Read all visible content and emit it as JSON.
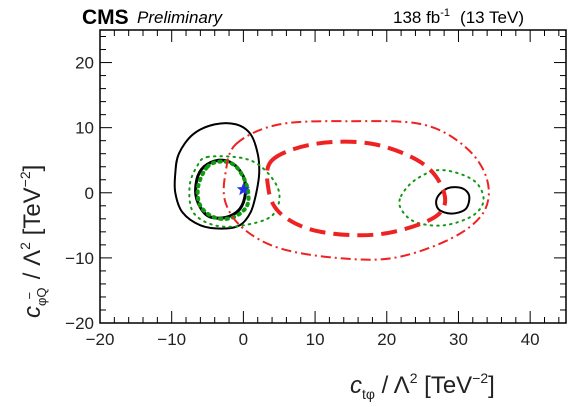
{
  "header": {
    "experiment": "CMS",
    "status": "Preliminary",
    "lumi": "138 fb",
    "lumi_exp": "-1",
    "energy": "(13 TeV)"
  },
  "chart_data": {
    "type": "contour",
    "xlabel": {
      "main": "c",
      "sub": "tφ",
      "rest": " / Λ",
      "sup": "2",
      "unit": " [TeV",
      "unit_sup": "−2",
      "unit_end": "]"
    },
    "ylabel": {
      "main": "c",
      "sub": "φQ",
      "sub_sup": "−",
      "rest": " / Λ",
      "sup": "2",
      "unit": " [TeV",
      "unit_sup": "−2",
      "unit_end": "]"
    },
    "xlim": [
      -20,
      45
    ],
    "ylim": [
      -20,
      25
    ],
    "xticks": [
      -20,
      -10,
      0,
      10,
      20,
      30,
      40
    ],
    "yticks": [
      -20,
      -10,
      0,
      10,
      20
    ],
    "xtick_labels": [
      "−20",
      "−10",
      "0",
      "10",
      "20",
      "30",
      "40"
    ],
    "ytick_labels": [
      "−20",
      "−10",
      "0",
      "10",
      "20"
    ],
    "best_fit": {
      "x": 0,
      "y": 0.5,
      "color": "#2233dd"
    },
    "contours": [
      {
        "id": "black-outer",
        "color": "#000000",
        "style": "solid",
        "width": 2,
        "points": [
          [
            -7,
            9
          ],
          [
            -4,
            10.5
          ],
          [
            -1,
            10.5
          ],
          [
            1,
            9
          ],
          [
            2,
            6
          ],
          [
            2.2,
            3
          ],
          [
            1.8,
            0
          ],
          [
            1,
            -3
          ],
          [
            -0.5,
            -5
          ],
          [
            -3,
            -5.5
          ],
          [
            -6,
            -5
          ],
          [
            -8.5,
            -3
          ],
          [
            -9.5,
            0
          ],
          [
            -9.5,
            3
          ],
          [
            -9,
            6
          ]
        ]
      },
      {
        "id": "black-inner",
        "color": "#000000",
        "style": "solid",
        "width": 3,
        "points": [
          [
            -5.5,
            4
          ],
          [
            -3.5,
            5
          ],
          [
            -1.5,
            4.5
          ],
          [
            0,
            2.5
          ],
          [
            0.3,
            0
          ],
          [
            -0.5,
            -2.5
          ],
          [
            -2.5,
            -3.8
          ],
          [
            -5,
            -3.5
          ],
          [
            -6.5,
            -1
          ],
          [
            -6.5,
            2
          ]
        ]
      },
      {
        "id": "black-right",
        "color": "#000000",
        "style": "solid",
        "width": 2,
        "points": [
          [
            27,
            -0.8
          ],
          [
            28.5,
            0.7
          ],
          [
            30.5,
            0.7
          ],
          [
            31.5,
            -0.5
          ],
          [
            31,
            -2.5
          ],
          [
            29,
            -3.2
          ],
          [
            27.2,
            -2.5
          ]
        ]
      },
      {
        "id": "green-outer",
        "color": "#119911",
        "style": "dotted",
        "width": 2,
        "points": [
          [
            -5,
            5.5
          ],
          [
            0,
            5.3
          ],
          [
            3,
            3.5
          ],
          [
            5,
            0
          ],
          [
            4,
            -3.5
          ],
          [
            0,
            -5
          ],
          [
            -4,
            -5
          ],
          [
            -7,
            -3
          ],
          [
            -7.5,
            1
          ],
          [
            -6.5,
            4
          ]
        ]
      },
      {
        "id": "green-inner",
        "color": "#119911",
        "style": "dotted",
        "width": 4,
        "points": [
          [
            -5,
            4
          ],
          [
            -3,
            4.8
          ],
          [
            -1,
            4
          ],
          [
            0.5,
            1
          ],
          [
            0.5,
            -2
          ],
          [
            -1.5,
            -3.8
          ],
          [
            -4,
            -3.8
          ],
          [
            -6,
            -2
          ],
          [
            -6.3,
            1
          ]
        ]
      },
      {
        "id": "green-right",
        "color": "#119911",
        "style": "dotted",
        "width": 2,
        "points": [
          [
            22,
            -0.5
          ],
          [
            24,
            2
          ],
          [
            27.5,
            3.5
          ],
          [
            32,
            2
          ],
          [
            33.5,
            -1
          ],
          [
            32,
            -3.5
          ],
          [
            28,
            -5
          ],
          [
            24,
            -4.5
          ],
          [
            22,
            -2.5
          ]
        ]
      },
      {
        "id": "red-outer",
        "color": "#ee2222",
        "style": "dashdot",
        "width": 2,
        "points": [
          [
            -1,
            7.5
          ],
          [
            5,
            10.5
          ],
          [
            15,
            11
          ],
          [
            25,
            10.5
          ],
          [
            31,
            7
          ],
          [
            34,
            2
          ],
          [
            33.5,
            -3
          ],
          [
            29,
            -7
          ],
          [
            21,
            -10
          ],
          [
            13,
            -10
          ],
          [
            5,
            -8.5
          ],
          [
            0,
            -5.5
          ],
          [
            -2.5,
            -1.5
          ],
          [
            -2.5,
            3
          ]
        ]
      },
      {
        "id": "red-inner",
        "color": "#ee2222",
        "style": "dashed",
        "width": 4,
        "points": [
          [
            4,
            5
          ],
          [
            10,
            7.5
          ],
          [
            18,
            7.5
          ],
          [
            25,
            4.5
          ],
          [
            28,
            0
          ],
          [
            27,
            -3.5
          ],
          [
            21,
            -6
          ],
          [
            15,
            -6.5
          ],
          [
            9,
            -5.5
          ],
          [
            5,
            -3
          ],
          [
            3.5,
            0.5
          ]
        ]
      }
    ]
  }
}
